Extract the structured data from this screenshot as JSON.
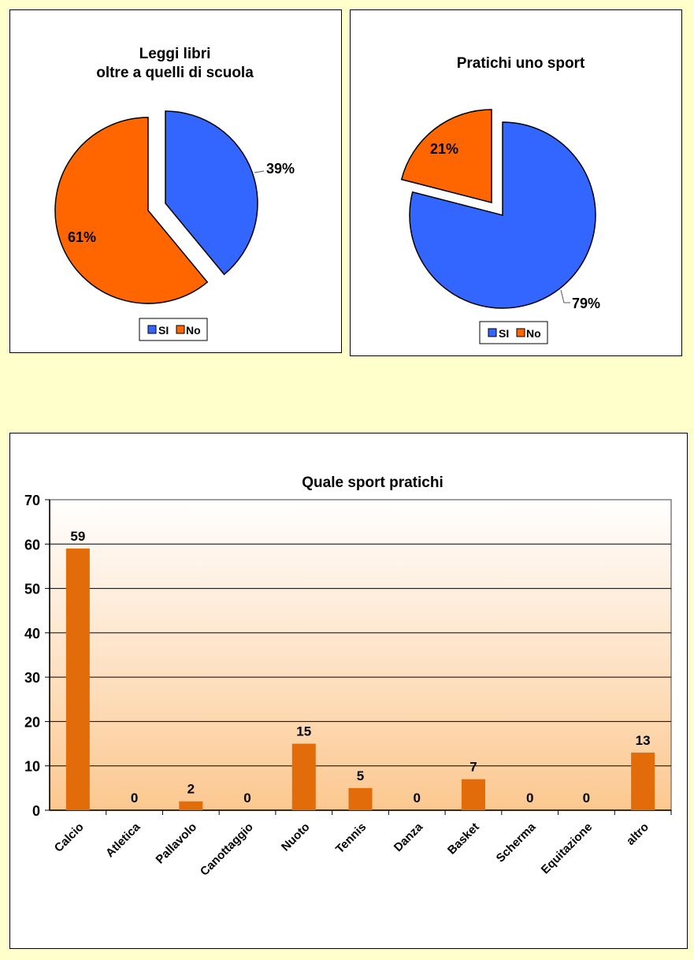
{
  "chart_data": [
    {
      "type": "pie",
      "title": [
        "Leggi libri",
        "oltre a quelli di scuola"
      ],
      "categories": [
        "SI",
        "No"
      ],
      "values": [
        39,
        61
      ],
      "labels": [
        "39%",
        "61%"
      ],
      "colors": [
        "#3366FF",
        "#FF6600"
      ],
      "exploded": "SI",
      "legend": "bottom"
    },
    {
      "type": "pie",
      "title": [
        "Pratichi uno sport"
      ],
      "categories": [
        "SI",
        "No"
      ],
      "values": [
        79,
        21
      ],
      "labels": [
        "79%",
        "21%"
      ],
      "colors": [
        "#3366FF",
        "#FF6600"
      ],
      "exploded": "No",
      "legend": "bottom"
    },
    {
      "type": "bar",
      "title": "Quale sport pratichi",
      "categories": [
        "Calcio",
        "Atletica",
        "Pallavolo",
        "Canottaggio",
        "Nuoto",
        "Tennis",
        "Danza",
        "Basket",
        "Scherma",
        "Equitazione",
        "altro"
      ],
      "values": [
        59,
        0,
        2,
        0,
        15,
        5,
        0,
        7,
        0,
        0,
        13
      ],
      "ylim": [
        0,
        70
      ],
      "yticks": [
        0,
        10,
        20,
        30,
        40,
        50,
        60,
        70
      ],
      "grid": true,
      "bar_color": "#E36C0A",
      "background_gradient": [
        "#FFFFFF",
        "#FCC890"
      ]
    }
  ],
  "colors": {
    "page_background": "#FFFFCC"
  }
}
